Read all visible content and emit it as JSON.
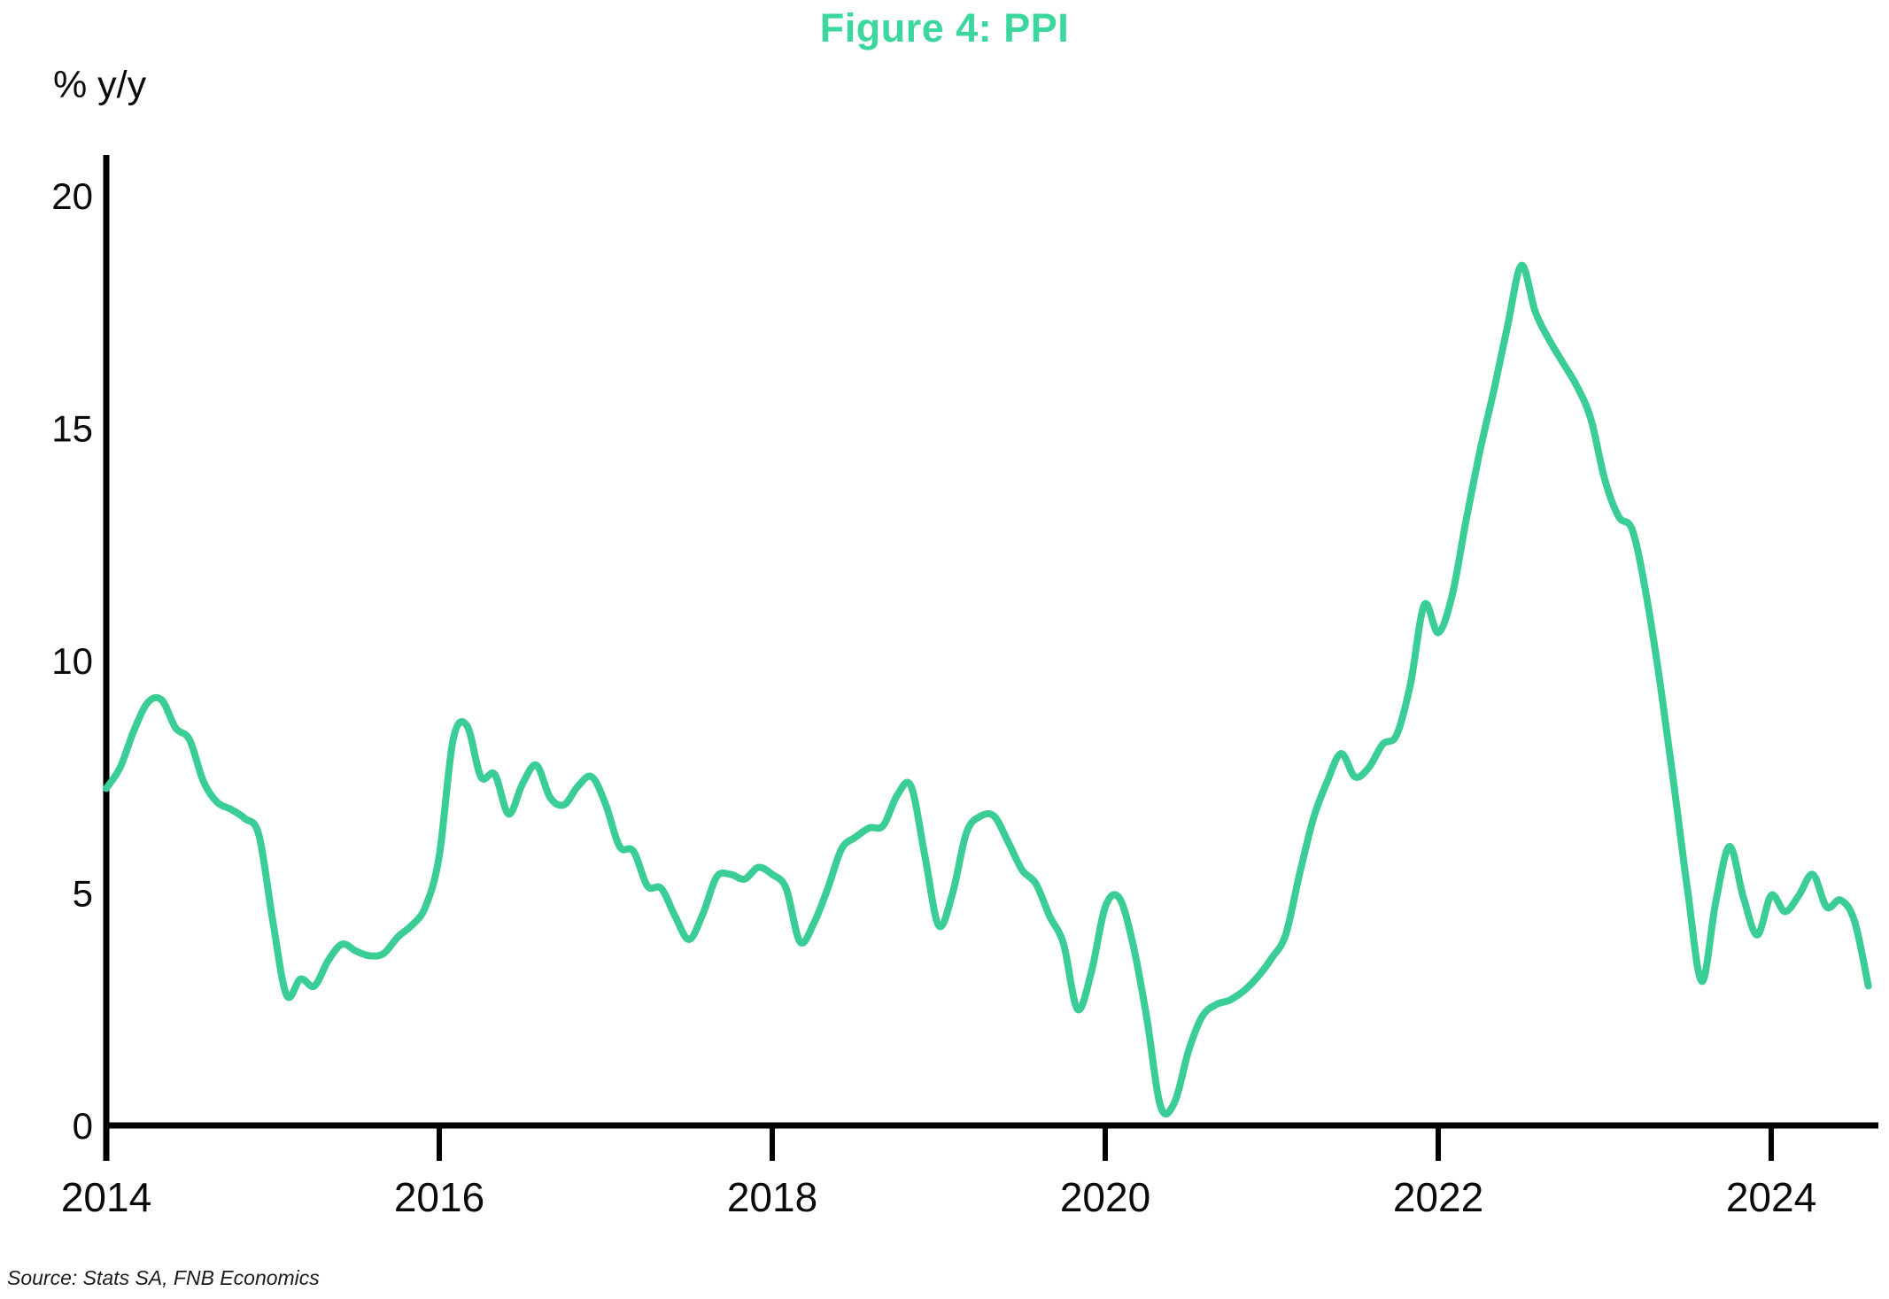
{
  "figure": {
    "title": "Figure 4: PPI",
    "title_color": "#3CD79D",
    "y_axis_unit_label": "% y/y",
    "source_note": "Source: Stats SA, FNB Economics",
    "axis_color": "#000000"
  },
  "chart_data": {
    "type": "line",
    "title": "Figure 4: PPI",
    "xlabel": "",
    "ylabel": "% y/y",
    "grid": false,
    "legend_position": "none",
    "x_tick_labels": [
      "2014",
      "2016",
      "2018",
      "2020",
      "2022",
      "2024"
    ],
    "y_ticks": [
      0,
      5,
      10,
      15,
      20
    ],
    "ylim": [
      0,
      20
    ],
    "x_start": "2014-01",
    "x_end": "2024-08",
    "frequency": "monthly",
    "source": "Source: Stats SA, FNB Economics",
    "series": [
      {
        "name": "PPI (% y/y)",
        "color": "#3BCD96",
        "values": [
          7.25,
          7.7,
          8.5,
          9.1,
          9.15,
          8.55,
          8.3,
          7.4,
          6.95,
          6.8,
          6.6,
          6.25,
          4.4,
          2.8,
          3.15,
          3.0,
          3.55,
          3.9,
          3.75,
          3.65,
          3.7,
          4.05,
          4.3,
          4.7,
          5.8,
          8.3,
          8.6,
          7.5,
          7.55,
          6.7,
          7.35,
          7.75,
          7.05,
          6.9,
          7.3,
          7.5,
          6.9,
          6.0,
          5.9,
          5.15,
          5.1,
          4.5,
          4.0,
          4.55,
          5.35,
          5.4,
          5.3,
          5.55,
          5.4,
          5.1,
          3.95,
          4.35,
          5.1,
          5.95,
          6.2,
          6.4,
          6.45,
          7.1,
          7.3,
          5.8,
          4.3,
          5.0,
          6.3,
          6.65,
          6.65,
          6.1,
          5.5,
          5.2,
          4.5,
          3.9,
          2.5,
          3.3,
          4.7,
          4.9,
          3.9,
          2.3,
          0.4,
          0.5,
          1.6,
          2.35,
          2.6,
          2.7,
          2.9,
          3.2,
          3.6,
          4.1,
          5.4,
          6.6,
          7.4,
          8.0,
          7.5,
          7.7,
          8.2,
          8.4,
          9.5,
          11.2,
          10.6,
          11.4,
          13.0,
          14.5,
          15.8,
          17.2,
          18.5,
          17.5,
          16.9,
          16.4,
          15.9,
          15.2,
          13.9,
          13.1,
          12.8,
          11.4,
          9.5,
          7.3,
          5.0,
          3.1,
          4.8,
          6.0,
          4.9,
          4.1,
          4.95,
          4.6,
          4.95,
          5.4,
          4.7,
          4.85,
          4.4,
          3.0
        ]
      }
    ]
  }
}
